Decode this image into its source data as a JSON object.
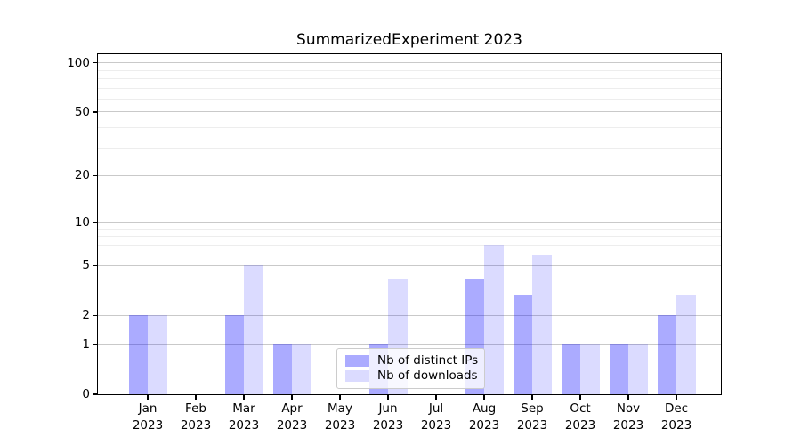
{
  "figure": {
    "background_color": "#ffffff"
  },
  "chart_data": {
    "type": "bar",
    "title": "SummarizedExperiment 2023",
    "categories": [
      "Jan",
      "Feb",
      "Mar",
      "Apr",
      "May",
      "Jun",
      "Jul",
      "Aug",
      "Sep",
      "Oct",
      "Nov",
      "Dec"
    ],
    "x_year": "2023",
    "series": [
      {
        "name": "Nb of distinct IPs",
        "color": "rgba(0,0,255,0.33)",
        "values": [
          2,
          0,
          2,
          1,
          0,
          1,
          0,
          4,
          3,
          1,
          1,
          2
        ]
      },
      {
        "name": "Nb of downloads",
        "color": "rgba(0,0,255,0.14)",
        "values": [
          2,
          0,
          5,
          1,
          0,
          4,
          0,
          7,
          6,
          1,
          1,
          3
        ]
      }
    ],
    "xlabel": "",
    "ylabel": "",
    "yscale": "log1p",
    "ylim": [
      0,
      113
    ],
    "yticks_major": [
      0,
      1,
      2,
      5,
      10,
      20,
      50,
      100
    ],
    "yticks_minor": [
      3,
      4,
      6,
      7,
      8,
      9,
      30,
      40,
      60,
      70,
      80,
      90
    ],
    "grid": {
      "on": true,
      "major_color": "#c9c9c9",
      "minor_color": "#ededed"
    },
    "legend": {
      "position": "lower center",
      "frame_border_color": "#cccccc",
      "frame_bg": "rgba(255,255,255,0.8)"
    }
  }
}
